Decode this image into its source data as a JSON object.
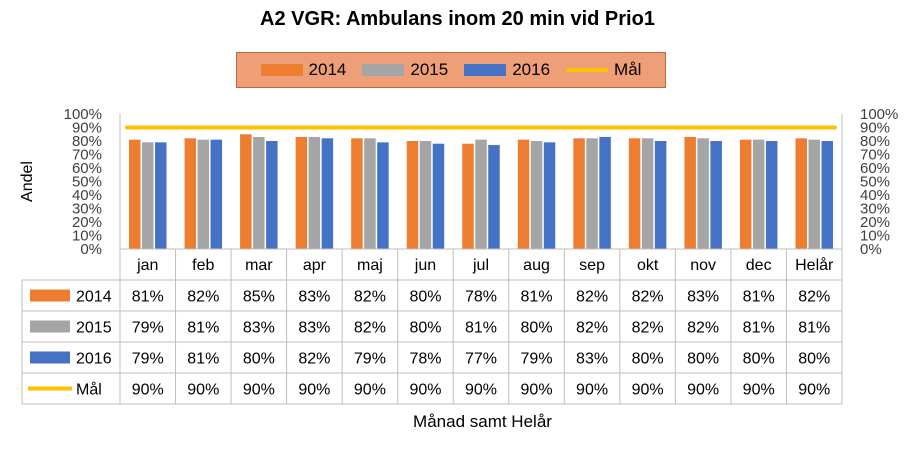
{
  "chart_data": {
    "type": "bar",
    "title": "A2 VGR: Ambulans inom 20 min vid Prio1",
    "xlabel": "Månad samt Helår",
    "ylabel": "Andel",
    "ylim": [
      0,
      100
    ],
    "yticks": [
      "0%",
      "10%",
      "20%",
      "30%",
      "40%",
      "50%",
      "60%",
      "70%",
      "80%",
      "90%",
      "100%"
    ],
    "categories": [
      "jan",
      "feb",
      "mar",
      "apr",
      "maj",
      "jun",
      "jul",
      "aug",
      "sep",
      "okt",
      "nov",
      "dec",
      "Helår"
    ],
    "series": [
      {
        "name": "2014",
        "color": "#ed7d31",
        "values": [
          81,
          82,
          85,
          83,
          82,
          80,
          78,
          81,
          82,
          82,
          83,
          81,
          82
        ],
        "labels": [
          "81%",
          "82%",
          "85%",
          "83%",
          "82%",
          "80%",
          "78%",
          "81%",
          "82%",
          "82%",
          "83%",
          "81%",
          "82%"
        ]
      },
      {
        "name": "2015",
        "color": "#a5a5a5",
        "values": [
          79,
          81,
          83,
          83,
          82,
          80,
          81,
          80,
          82,
          82,
          82,
          81,
          81
        ],
        "labels": [
          "79%",
          "81%",
          "83%",
          "83%",
          "82%",
          "80%",
          "81%",
          "80%",
          "82%",
          "82%",
          "82%",
          "81%",
          "81%"
        ]
      },
      {
        "name": "2016",
        "color": "#4472c4",
        "values": [
          79,
          81,
          80,
          82,
          79,
          78,
          77,
          79,
          83,
          80,
          80,
          80,
          80
        ],
        "labels": [
          "79%",
          "81%",
          "80%",
          "82%",
          "79%",
          "78%",
          "77%",
          "79%",
          "83%",
          "80%",
          "80%",
          "80%",
          "80%"
        ]
      }
    ],
    "target": {
      "name": "Mål",
      "color": "#ffc000",
      "values": [
        90,
        90,
        90,
        90,
        90,
        90,
        90,
        90,
        90,
        90,
        90,
        90,
        90
      ],
      "labels": [
        "90%",
        "90%",
        "90%",
        "90%",
        "90%",
        "90%",
        "90%",
        "90%",
        "90%",
        "90%",
        "90%",
        "90%",
        "90%"
      ]
    },
    "grid": false,
    "legend": "top",
    "data_table": true
  }
}
